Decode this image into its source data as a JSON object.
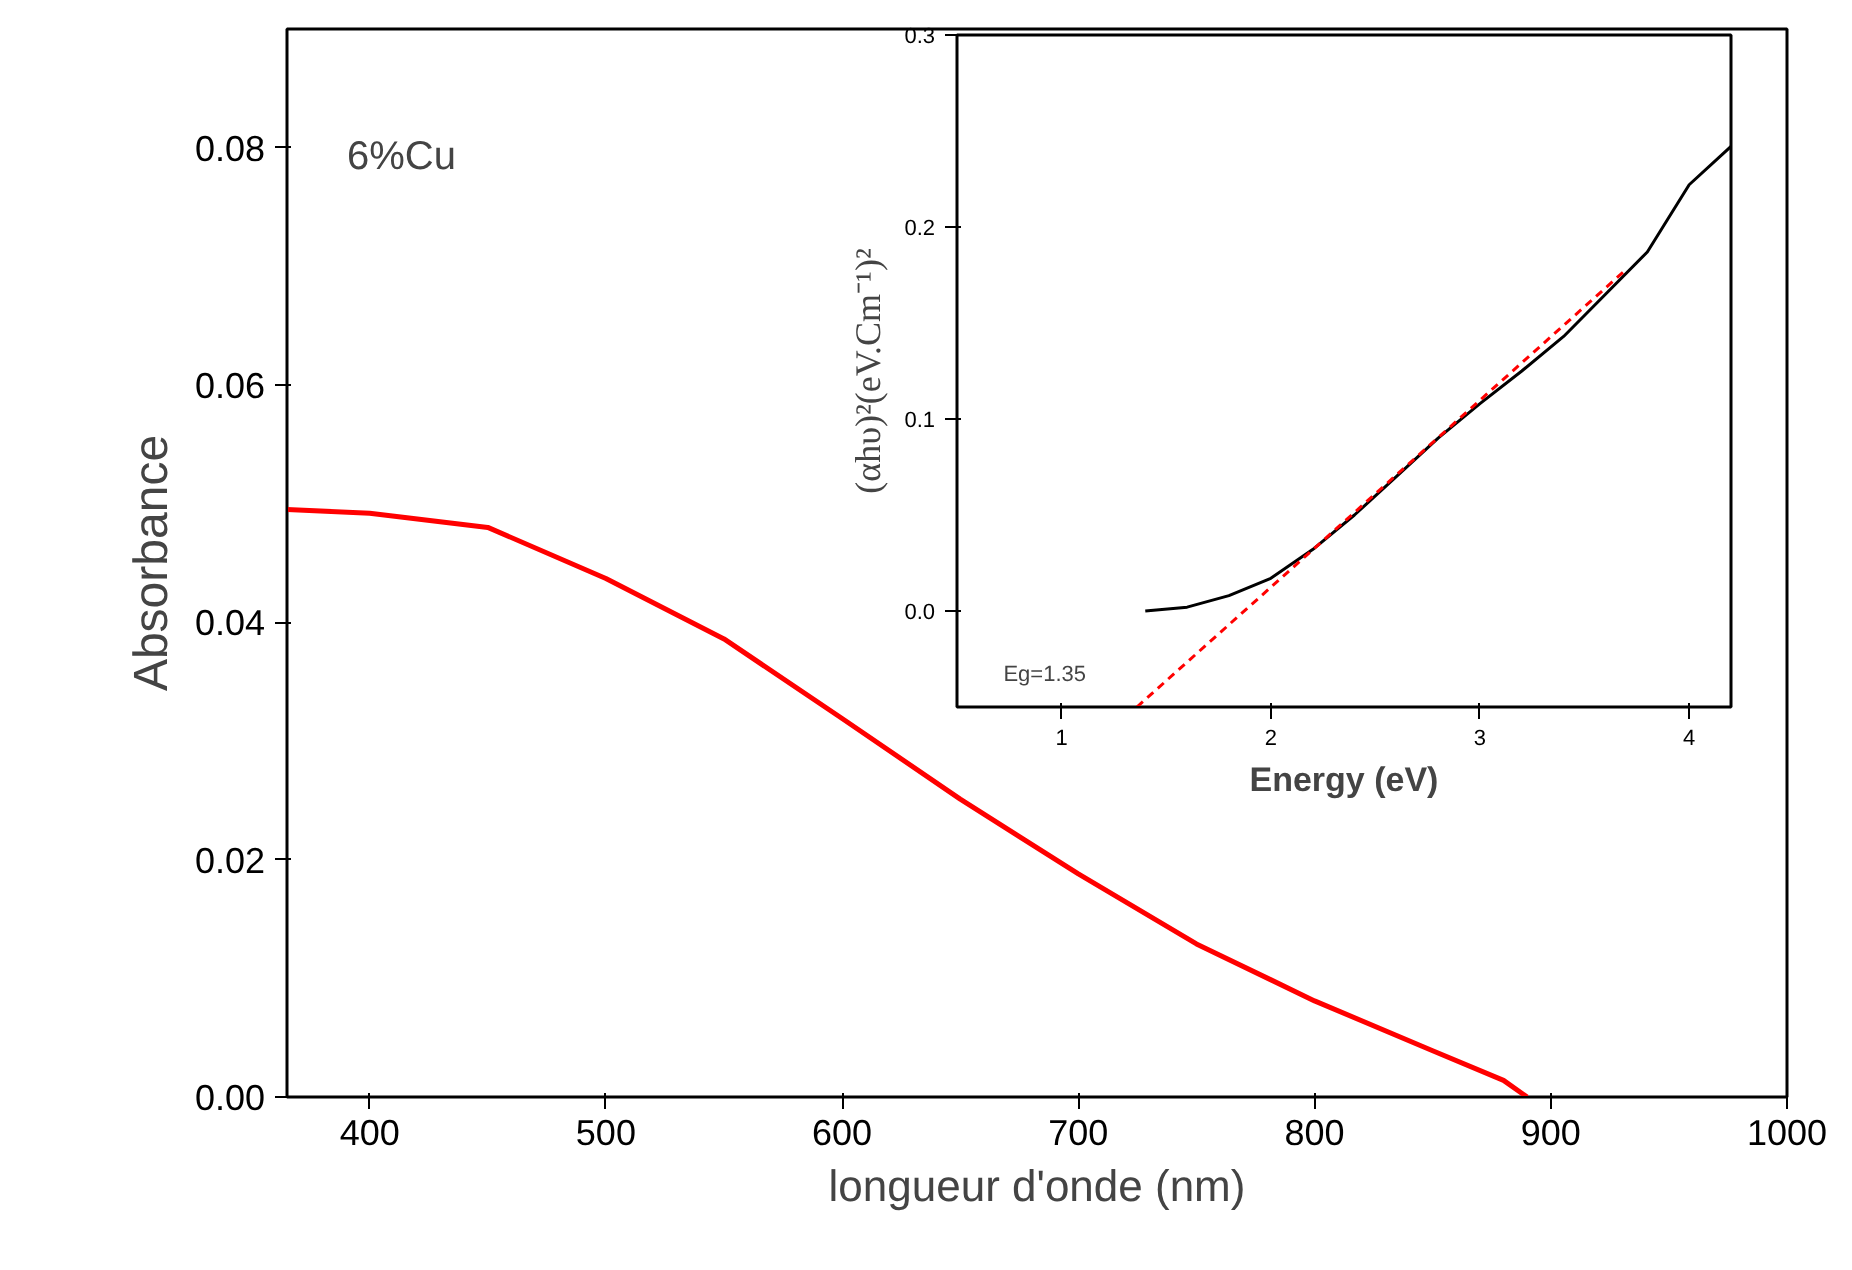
{
  "chart_data": [
    {
      "type": "line",
      "xlabel": "longueur d'onde (nm)",
      "ylabel": "Absorbance",
      "annotations": [
        "6%Cu"
      ],
      "xlim": [
        365,
        1000
      ],
      "xticks": [
        400,
        500,
        600,
        700,
        800,
        900,
        1000
      ],
      "ylim": [
        0,
        0.09
      ],
      "yticks": [
        {
          "value": 0,
          "label": "0.00"
        },
        {
          "value": 0.02,
          "label": "0.02"
        },
        {
          "value": 0.04,
          "label": "0.04"
        },
        {
          "value": 0.06,
          "label": "0.06"
        },
        {
          "value": 0.08,
          "label": "0.08"
        }
      ],
      "grid": false,
      "line_style": "solid",
      "series": [
        {
          "color": "#ff0000",
          "x": [
            365,
            400,
            450,
            500,
            550,
            600,
            650,
            700,
            750,
            800,
            850,
            880,
            890
          ],
          "values": [
            0.0495,
            0.0492,
            0.048,
            0.0437,
            0.0386,
            0.0319,
            0.0251,
            0.0188,
            0.0129,
            0.0081,
            0.0039,
            0.0014,
            0.0
          ]
        }
      ]
    },
    {
      "type": "line",
      "xlabel": "Energy (eV)",
      "ylabel": "(αhυ)²(eV.Cm⁻¹)²",
      "annotations": [
        "Eg=1.35"
      ],
      "xlim": [
        0.5,
        4.2
      ],
      "xticks": [
        1,
        2,
        3,
        4
      ],
      "ylim": [
        -0.05,
        0.3
      ],
      "yticks": [
        {
          "value": 0,
          "label": "0.0"
        },
        {
          "value": 0.1,
          "label": "0.1"
        },
        {
          "value": 0.2,
          "label": "0.2"
        },
        {
          "value": 0.3,
          "label": "0.3"
        }
      ],
      "grid": false,
      "series": [
        {
          "color": "#000000",
          "line_style": "solid",
          "x": [
            1.4,
            1.6,
            1.8,
            2.0,
            2.2,
            2.4,
            2.6,
            2.8,
            3.0,
            3.2,
            3.4,
            3.6,
            3.8,
            4.0,
            4.2
          ],
          "values": [
            0.0,
            0.002,
            0.008,
            0.017,
            0.032,
            0.05,
            0.07,
            0.09,
            0.108,
            0.125,
            0.143,
            0.165,
            0.187,
            0.222,
            0.242
          ]
        },
        {
          "color": "#ff0000",
          "line_style": "dashed",
          "x": [
            1.36,
            3.7
          ],
          "values": [
            -0.05,
            0.178
          ]
        }
      ]
    }
  ]
}
